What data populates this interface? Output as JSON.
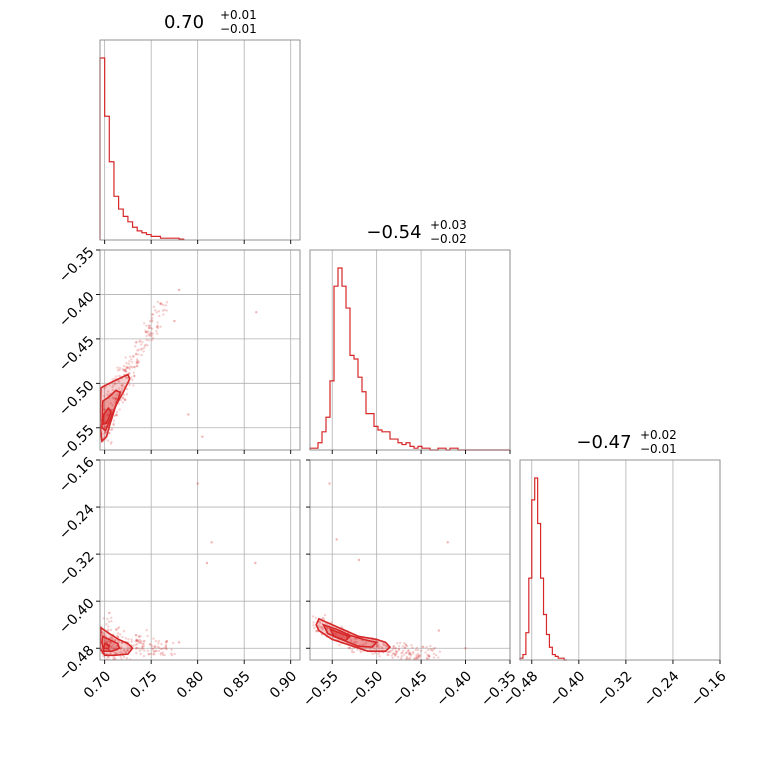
{
  "chart_data": {
    "type": "corner",
    "color": "#d62728",
    "grid": true,
    "parameters": [
      {
        "index": 0,
        "title": {
          "center": "0.70",
          "plus": "+0.01",
          "minus": "−0.01"
        },
        "range": [
          0.695,
          0.91
        ],
        "ticks": [
          0.7,
          0.75,
          0.8,
          0.85,
          0.9
        ],
        "tick_labels": [
          "0.70",
          "0.75",
          "0.80",
          "0.85",
          "0.90"
        ],
        "hist": {
          "bin_edges": [
            0.695,
            0.7,
            0.705,
            0.71,
            0.715,
            0.72,
            0.725,
            0.73,
            0.735,
            0.74,
            0.745,
            0.75,
            0.755,
            0.76,
            0.765,
            0.77,
            0.775,
            0.78,
            0.785
          ],
          "counts": [
            100,
            68,
            43,
            24,
            17,
            13,
            10,
            7,
            5,
            4,
            3,
            2,
            2,
            1,
            1,
            1,
            1,
            0.5
          ]
        }
      },
      {
        "index": 1,
        "title": {
          "center": "−0.54",
          "plus": "+0.03",
          "minus": "−0.02"
        },
        "range": [
          -0.575,
          -0.35
        ],
        "ticks": [
          -0.55,
          -0.5,
          -0.45,
          -0.4,
          -0.35
        ],
        "tick_labels": [
          "−0.55",
          "−0.50",
          "−0.45",
          "−0.40",
          "−0.35"
        ],
        "y_ticks": [
          -0.55,
          -0.5,
          -0.45,
          -0.4,
          -0.35
        ],
        "y_tick_labels": [
          "−0.55",
          "−0.50",
          "−0.45",
          "−0.40",
          "−0.35"
        ],
        "hist": {
          "bin_edges": [
            -0.575,
            -0.5705,
            -0.566,
            -0.5615,
            -0.557,
            -0.5525,
            -0.548,
            -0.5435,
            -0.539,
            -0.5345,
            -0.53,
            -0.5255,
            -0.521,
            -0.5165,
            -0.512,
            -0.5075,
            -0.503,
            -0.4985,
            -0.494,
            -0.4895,
            -0.485,
            -0.4805,
            -0.476,
            -0.4715,
            -0.467,
            -0.4625,
            -0.458,
            -0.4535,
            -0.449,
            -0.4445,
            -0.44,
            -0.4355,
            -0.431,
            -0.4265,
            -0.422,
            -0.4175,
            -0.413,
            -0.4085,
            -0.404,
            -0.3995,
            -0.395,
            -0.3905,
            -0.386,
            -0.3815,
            -0.377,
            -0.3725,
            -0.368,
            -0.3635,
            -0.359,
            -0.3545,
            -0.35
          ],
          "counts": [
            1,
            1,
            4,
            10,
            18,
            38,
            90,
            100,
            90,
            78,
            52,
            50,
            40,
            32,
            20,
            20,
            13,
            11,
            10,
            10,
            6,
            6,
            4,
            3,
            4,
            2,
            1,
            2,
            1,
            1,
            0,
            0,
            1,
            1,
            0,
            1,
            1,
            0,
            0,
            0,
            0,
            0,
            0,
            0,
            0,
            0,
            0,
            0,
            0,
            0
          ]
        }
      },
      {
        "index": 2,
        "title": {
          "center": "−0.47",
          "plus": "+0.02",
          "minus": "−0.01"
        },
        "range": [
          -0.5,
          -0.16
        ],
        "ticks": [
          -0.48,
          -0.4,
          -0.32,
          -0.24,
          -0.16
        ],
        "tick_labels": [
          "−0.48",
          "−0.40",
          "−0.32",
          "−0.24",
          "−0.16"
        ],
        "y_ticks": [
          -0.48,
          -0.4,
          -0.32,
          -0.24,
          -0.16
        ],
        "y_tick_labels": [
          "−0.48",
          "−0.40",
          "−0.32",
          "−0.24",
          "−0.16"
        ],
        "hist": {
          "bin_edges": [
            -0.5,
            -0.495,
            -0.49,
            -0.485,
            -0.48,
            -0.475,
            -0.47,
            -0.465,
            -0.46,
            -0.455,
            -0.45,
            -0.445,
            -0.44,
            -0.435,
            -0.43,
            -0.425,
            -0.42
          ],
          "counts": [
            1,
            3,
            15,
            45,
            88,
            100,
            75,
            45,
            25,
            14,
            7,
            3,
            2,
            1,
            1,
            0
          ]
        }
      }
    ],
    "scatter_01": {
      "core": [
        [
          0.7,
          -0.53
        ],
        [
          0.705,
          -0.51
        ],
        [
          0.712,
          -0.5
        ],
        [
          0.72,
          -0.49
        ],
        [
          0.73,
          -0.475
        ],
        [
          0.74,
          -0.46
        ],
        [
          0.745,
          -0.45
        ],
        [
          0.698,
          -0.55
        ],
        [
          0.702,
          -0.545
        ],
        [
          0.715,
          -0.52
        ],
        [
          0.725,
          -0.5
        ],
        [
          0.735,
          -0.47
        ],
        [
          0.708,
          -0.54
        ],
        [
          0.718,
          -0.515
        ],
        [
          0.728,
          -0.485
        ],
        [
          0.75,
          -0.44
        ],
        [
          0.755,
          -0.43
        ],
        [
          0.76,
          -0.415
        ],
        [
          0.7,
          -0.56
        ],
        [
          0.71,
          -0.53
        ]
      ],
      "outliers": [
        [
          0.76,
          -0.41
        ],
        [
          0.775,
          -0.43
        ],
        [
          0.78,
          -0.395
        ],
        [
          0.805,
          -0.56
        ],
        [
          0.863,
          -0.42
        ],
        [
          0.79,
          -0.535
        ]
      ],
      "contours": [
        [
          [
            0.696,
            -0.505
          ],
          [
            0.705,
            -0.5
          ],
          [
            0.715,
            -0.495
          ],
          [
            0.725,
            -0.49
          ],
          [
            0.727,
            -0.495
          ],
          [
            0.72,
            -0.51
          ],
          [
            0.712,
            -0.525
          ],
          [
            0.706,
            -0.545
          ],
          [
            0.702,
            -0.56
          ],
          [
            0.697,
            -0.565
          ],
          [
            0.695,
            -0.545
          ],
          [
            0.696,
            -0.505
          ]
        ],
        [
          [
            0.698,
            -0.52
          ],
          [
            0.705,
            -0.515
          ],
          [
            0.712,
            -0.508
          ],
          [
            0.717,
            -0.51
          ],
          [
            0.712,
            -0.525
          ],
          [
            0.706,
            -0.54
          ],
          [
            0.701,
            -0.553
          ],
          [
            0.697,
            -0.55
          ],
          [
            0.698,
            -0.52
          ]
        ],
        [
          [
            0.699,
            -0.535
          ],
          [
            0.704,
            -0.528
          ],
          [
            0.707,
            -0.532
          ],
          [
            0.702,
            -0.545
          ],
          [
            0.698,
            -0.546
          ],
          [
            0.699,
            -0.535
          ]
        ]
      ]
    },
    "scatter_02": {
      "core": [
        [
          0.7,
          -0.46
        ],
        [
          0.703,
          -0.465
        ],
        [
          0.708,
          -0.47
        ],
        [
          0.712,
          -0.475
        ],
        [
          0.718,
          -0.478
        ],
        [
          0.725,
          -0.48
        ],
        [
          0.735,
          -0.478
        ],
        [
          0.745,
          -0.482
        ],
        [
          0.755,
          -0.479
        ],
        [
          0.7,
          -0.48
        ],
        [
          0.705,
          -0.485
        ],
        [
          0.71,
          -0.49
        ],
        [
          0.702,
          -0.44
        ],
        [
          0.715,
          -0.455
        ],
        [
          0.73,
          -0.47
        ],
        [
          0.76,
          -0.475
        ],
        [
          0.77,
          -0.48
        ],
        [
          0.698,
          -0.495
        ],
        [
          0.72,
          -0.49
        ],
        [
          0.74,
          -0.46
        ]
      ],
      "outliers": [
        [
          0.8,
          -0.2
        ],
        [
          0.815,
          -0.3
        ],
        [
          0.81,
          -0.335
        ],
        [
          0.862,
          -0.335
        ],
        [
          0.705,
          -0.42
        ],
        [
          0.78,
          -0.47
        ]
      ],
      "contours": [
        [
          [
            0.696,
            -0.445
          ],
          [
            0.705,
            -0.455
          ],
          [
            0.715,
            -0.465
          ],
          [
            0.725,
            -0.472
          ],
          [
            0.73,
            -0.48
          ],
          [
            0.725,
            -0.49
          ],
          [
            0.71,
            -0.492
          ],
          [
            0.7,
            -0.492
          ],
          [
            0.695,
            -0.48
          ],
          [
            0.696,
            -0.445
          ]
        ],
        [
          [
            0.698,
            -0.46
          ],
          [
            0.706,
            -0.466
          ],
          [
            0.714,
            -0.472
          ],
          [
            0.716,
            -0.48
          ],
          [
            0.708,
            -0.485
          ],
          [
            0.699,
            -0.485
          ],
          [
            0.697,
            -0.47
          ],
          [
            0.698,
            -0.46
          ]
        ],
        [
          [
            0.7,
            -0.472
          ],
          [
            0.705,
            -0.475
          ],
          [
            0.704,
            -0.481
          ],
          [
            0.699,
            -0.48
          ],
          [
            0.7,
            -0.472
          ]
        ]
      ]
    },
    "scatter_12": {
      "core": [
        [
          -0.565,
          -0.435
        ],
        [
          -0.555,
          -0.44
        ],
        [
          -0.545,
          -0.455
        ],
        [
          -0.535,
          -0.46
        ],
        [
          -0.525,
          -0.468
        ],
        [
          -0.515,
          -0.472
        ],
        [
          -0.505,
          -0.475
        ],
        [
          -0.495,
          -0.478
        ],
        [
          -0.485,
          -0.48
        ],
        [
          -0.475,
          -0.482
        ],
        [
          -0.465,
          -0.485
        ],
        [
          -0.455,
          -0.487
        ],
        [
          -0.445,
          -0.488
        ],
        [
          -0.435,
          -0.49
        ],
        [
          -0.56,
          -0.45
        ],
        [
          -0.54,
          -0.465
        ],
        [
          -0.52,
          -0.475
        ],
        [
          -0.5,
          -0.482
        ],
        [
          -0.48,
          -0.488
        ],
        [
          -0.46,
          -0.49
        ]
      ],
      "outliers": [
        [
          -0.553,
          -0.2
        ],
        [
          -0.545,
          -0.295
        ],
        [
          -0.42,
          -0.3
        ],
        [
          -0.52,
          -0.33
        ],
        [
          -0.43,
          -0.45
        ],
        [
          -0.4,
          -0.48
        ]
      ],
      "contours": [
        [
          [
            -0.565,
            -0.43
          ],
          [
            -0.55,
            -0.44
          ],
          [
            -0.535,
            -0.45
          ],
          [
            -0.52,
            -0.46
          ],
          [
            -0.5,
            -0.465
          ],
          [
            -0.49,
            -0.47
          ],
          [
            -0.485,
            -0.478
          ],
          [
            -0.49,
            -0.485
          ],
          [
            -0.51,
            -0.485
          ],
          [
            -0.53,
            -0.475
          ],
          [
            -0.55,
            -0.465
          ],
          [
            -0.565,
            -0.45
          ],
          [
            -0.568,
            -0.44
          ],
          [
            -0.565,
            -0.43
          ]
        ],
        [
          [
            -0.56,
            -0.44
          ],
          [
            -0.545,
            -0.448
          ],
          [
            -0.53,
            -0.458
          ],
          [
            -0.515,
            -0.465
          ],
          [
            -0.5,
            -0.47
          ],
          [
            -0.505,
            -0.478
          ],
          [
            -0.52,
            -0.477
          ],
          [
            -0.54,
            -0.465
          ],
          [
            -0.555,
            -0.455
          ],
          [
            -0.56,
            -0.44
          ]
        ],
        [
          [
            -0.552,
            -0.448
          ],
          [
            -0.54,
            -0.455
          ],
          [
            -0.53,
            -0.46
          ],
          [
            -0.535,
            -0.467
          ],
          [
            -0.548,
            -0.46
          ],
          [
            -0.552,
            -0.448
          ]
        ]
      ]
    }
  }
}
